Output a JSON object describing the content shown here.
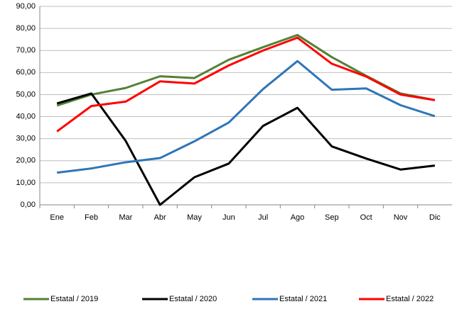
{
  "chart_data": {
    "type": "line",
    "categories": [
      "Ene",
      "Feb",
      "Mar",
      "Abr",
      "May",
      "Jun",
      "Jul",
      "Ago",
      "Sep",
      "Oct",
      "Nov",
      "Dic"
    ],
    "series": [
      {
        "name": "Estatal / 2019",
        "color": "#538135",
        "values": [
          45,
          50,
          53,
          58.3,
          57.5,
          65.8,
          71.5,
          77,
          67,
          58.5,
          50.5,
          47.5
        ]
      },
      {
        "name": "Estatal / 2020",
        "color": "#000000",
        "values": [
          46,
          50.5,
          29,
          0,
          12.5,
          18.7,
          35.8,
          44,
          26.5,
          21,
          16,
          17.8
        ]
      },
      {
        "name": "Estatal / 2021",
        "color": "#2e75b6",
        "values": [
          14.6,
          16.5,
          19.3,
          21.2,
          28.8,
          37.3,
          52.5,
          65.2,
          52.2,
          52.8,
          45.2,
          40.2
        ]
      },
      {
        "name": "Estatal / 2022",
        "color": "#ff0000",
        "values": [
          33.3,
          44.8,
          46.8,
          56,
          55,
          63.2,
          70,
          75.8,
          64,
          58.2,
          50,
          47.5
        ]
      }
    ],
    "ylim": [
      0,
      90
    ],
    "yticks": [
      {
        "value": 0,
        "label": "0,00"
      },
      {
        "value": 10,
        "label": "10,00"
      },
      {
        "value": 20,
        "label": "20,00"
      },
      {
        "value": 30,
        "label": "30,00"
      },
      {
        "value": 40,
        "label": "40,00"
      },
      {
        "value": 50,
        "label": "50,00"
      },
      {
        "value": 60,
        "label": "60,00"
      },
      {
        "value": 70,
        "label": "70,00"
      },
      {
        "value": 80,
        "label": "80,00"
      },
      {
        "value": 90,
        "label": "90,00"
      }
    ],
    "grid": true,
    "legend": "bottom"
  }
}
